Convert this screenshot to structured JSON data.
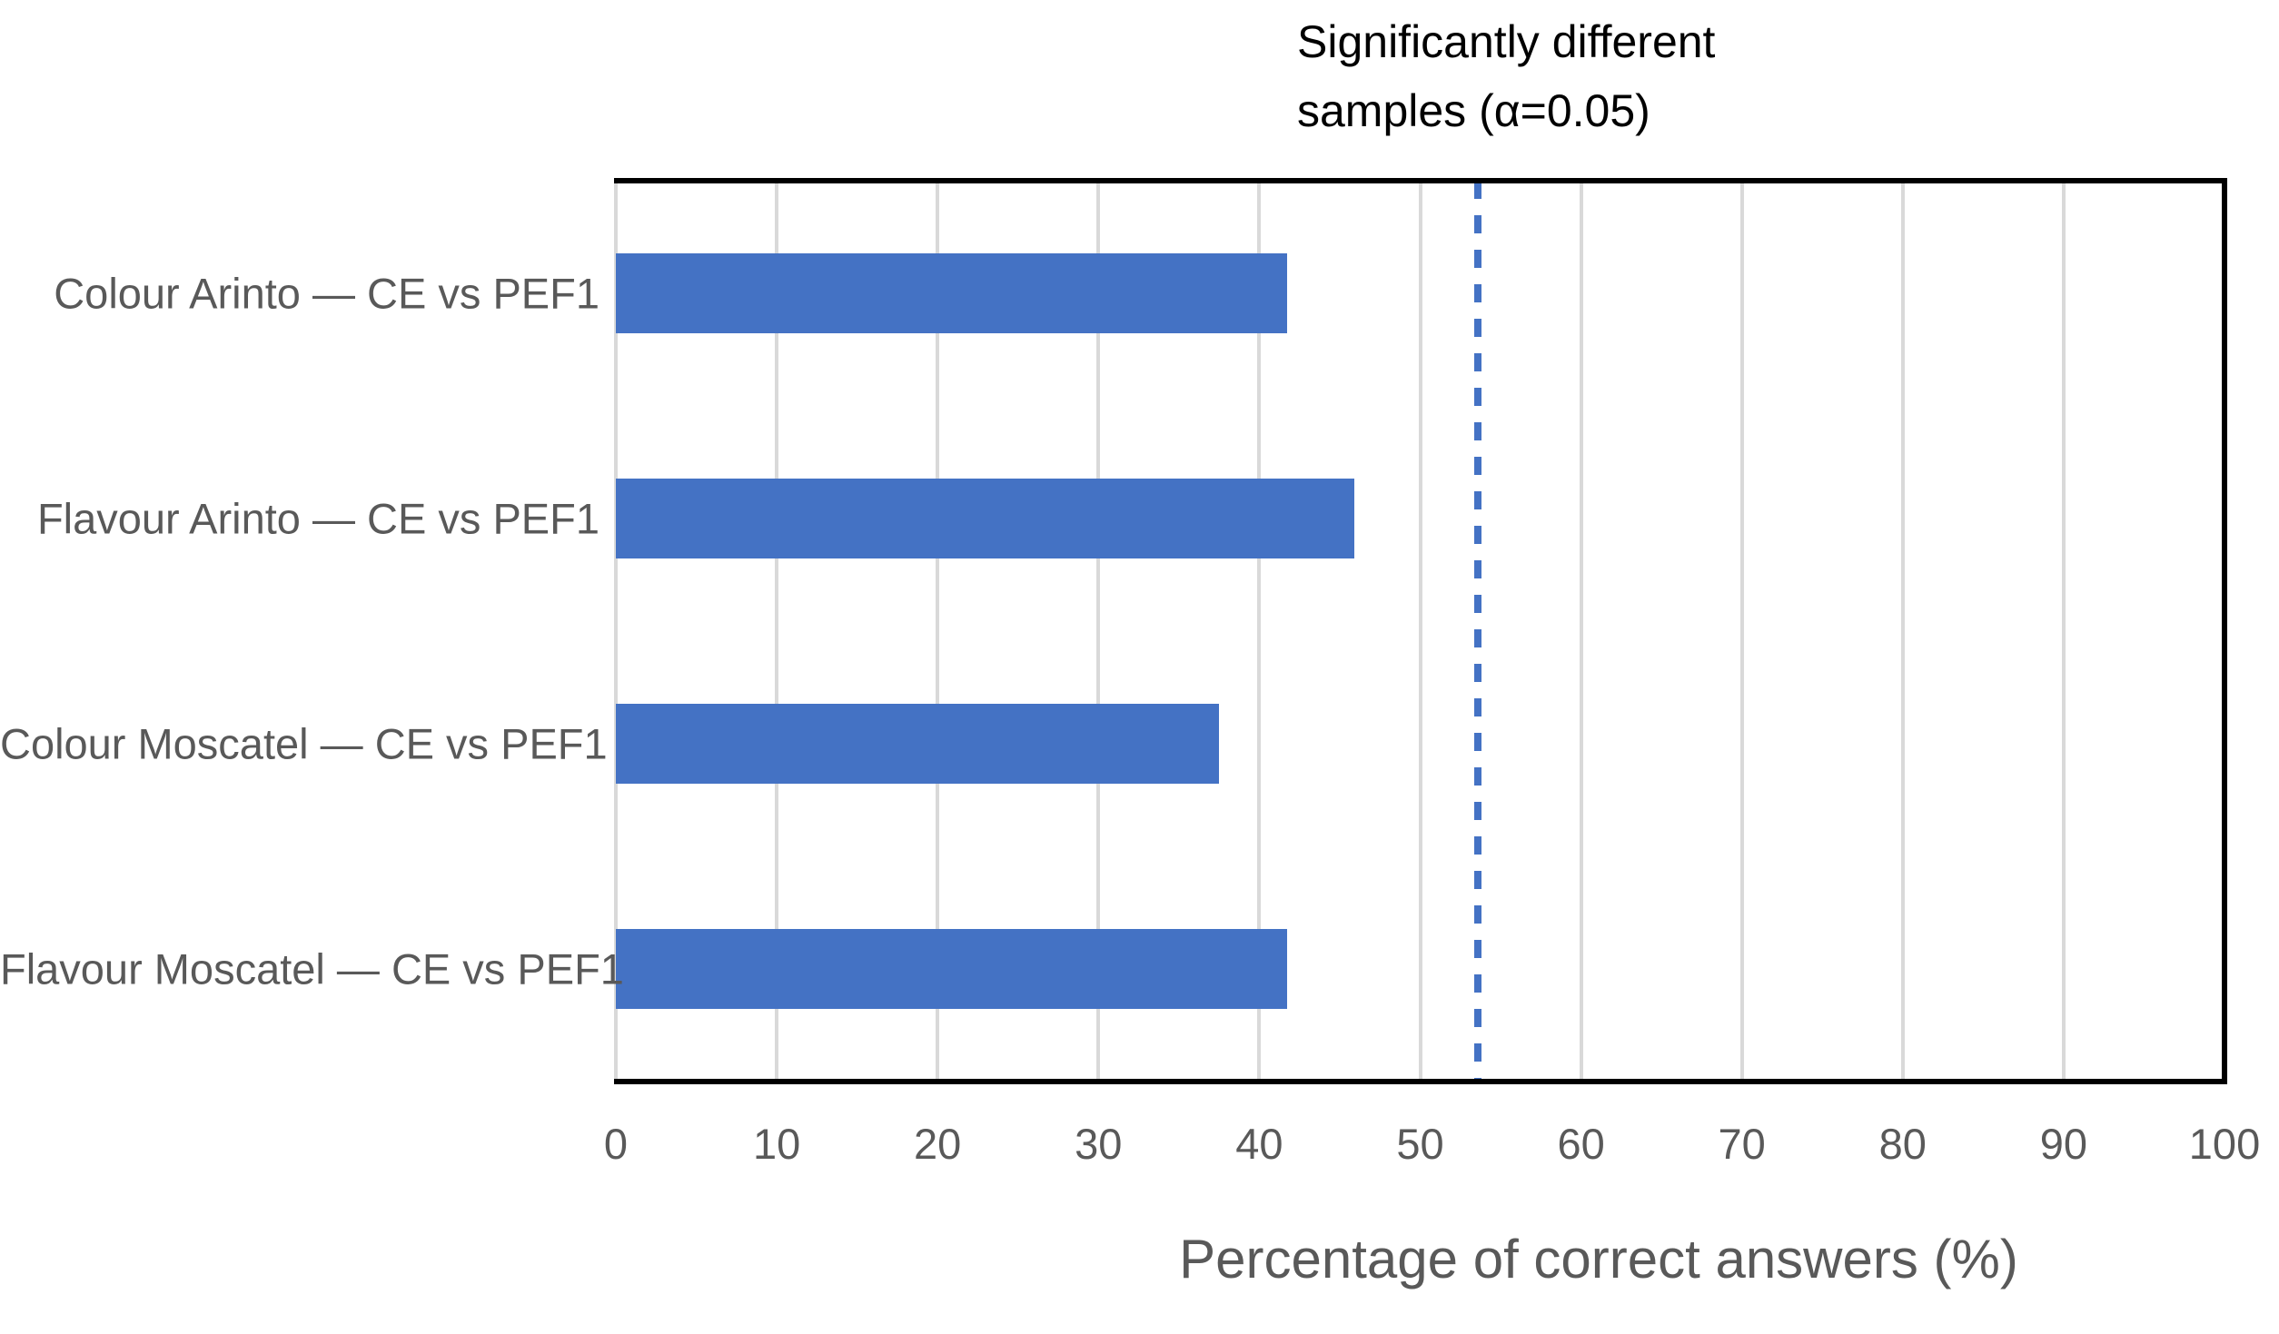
{
  "chart_data": {
    "type": "bar",
    "orientation": "horizontal",
    "categories": [
      "Colour Arinto — CE vs PEF1",
      "Flavour Arinto — CE vs PEF1",
      "Colour Moscatel — CE vs PEF1",
      "Flavour Moscatel — CE vs PEF1"
    ],
    "values": [
      41.7,
      45.9,
      37.5,
      41.7
    ],
    "xlabel": "Percentage of correct answers (%)",
    "xlim": [
      0,
      100
    ],
    "x_ticks": [
      0,
      10,
      20,
      30,
      40,
      50,
      60,
      70,
      80,
      90,
      100
    ],
    "grid": "vertical",
    "legend": "none",
    "bar_color": "#4472C4",
    "gridline_color": "#D9D9D9",
    "axis_color": "#000000",
    "label_color": "#595959",
    "threshold_line": {
      "value": 53.6,
      "style": "dashed",
      "color": "#4472C4",
      "label_line1": "Significantly different",
      "label_line2": "samples (α=0.05)"
    }
  }
}
